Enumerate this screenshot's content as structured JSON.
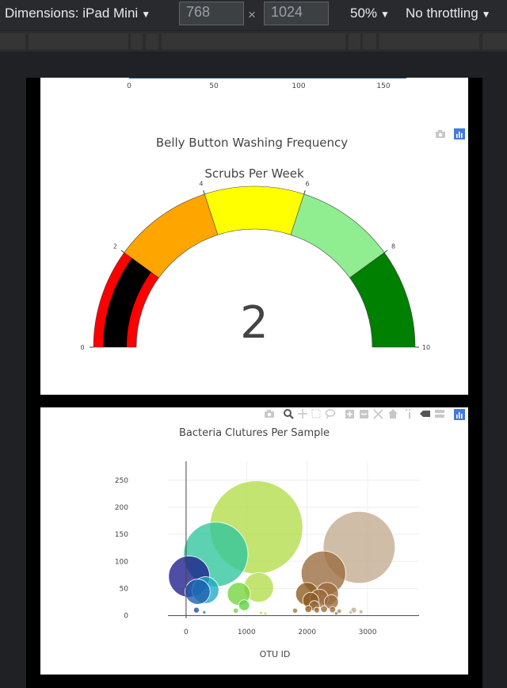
{
  "toolbar": {
    "dimensions_label": "Dimensions: iPad Mini",
    "width_value": "768",
    "times": "×",
    "height_value": "1024",
    "zoom": "50%",
    "throttling": "No throttling"
  },
  "top_axis": {
    "ticks": [
      "0",
      "50",
      "100",
      "150"
    ]
  },
  "gauge": {
    "title": "Belly Button Washing Frequency",
    "subtitle": "Scrubs Per Week",
    "value_text": "2",
    "value": 2,
    "min": 0,
    "max": 10,
    "tick_labels": [
      "0",
      "2",
      "4",
      "6",
      "8",
      "10"
    ],
    "bands": [
      {
        "from": 0,
        "to": 2,
        "color": "#ff0000"
      },
      {
        "from": 2,
        "to": 4,
        "color": "#ffa500"
      },
      {
        "from": 4,
        "to": 6,
        "color": "#ffff00"
      },
      {
        "from": 6,
        "to": 8,
        "color": "#90ee90"
      },
      {
        "from": 8,
        "to": 10,
        "color": "#008000"
      }
    ],
    "bar_color": "#000000"
  },
  "chart_data": {
    "type": "scatter",
    "title": "Bacteria Clutures Per Sample",
    "xlabel": "OTU ID",
    "ylabel": "",
    "xlim": [
      -300,
      3850
    ],
    "ylim": [
      -5,
      285
    ],
    "xticks": [
      0,
      1000,
      2000,
      3000
    ],
    "yticks": [
      0,
      50,
      100,
      150,
      200,
      250
    ],
    "points": [
      {
        "x": 1160,
        "y": 163,
        "size": 163,
        "color": "#b4dc4a"
      },
      {
        "x": 2860,
        "y": 126,
        "size": 126,
        "color": "#c3aa90"
      },
      {
        "x": 490,
        "y": 113,
        "size": 113,
        "color": "#2ec59c"
      },
      {
        "x": 2270,
        "y": 78,
        "size": 78,
        "color": "#9a6a3c"
      },
      {
        "x": 50,
        "y": 72,
        "size": 72,
        "color": "#1c1c8c"
      },
      {
        "x": 1200,
        "y": 52,
        "size": 52,
        "color": "#b4dc4a"
      },
      {
        "x": 320,
        "y": 47,
        "size": 47,
        "color": "#1fa8c8"
      },
      {
        "x": 190,
        "y": 44,
        "size": 44,
        "color": "#1c5cb0"
      },
      {
        "x": 2330,
        "y": 40,
        "size": 40,
        "color": "#9a6a3c"
      },
      {
        "x": 2000,
        "y": 40,
        "size": 40,
        "color": "#8a5a1c"
      },
      {
        "x": 870,
        "y": 40,
        "size": 40,
        "color": "#72d43c"
      },
      {
        "x": 2200,
        "y": 32,
        "size": 32,
        "color": "#9a6a3c"
      },
      {
        "x": 2060,
        "y": 28,
        "size": 28,
        "color": "#8a5a1c"
      },
      {
        "x": 2400,
        "y": 25,
        "size": 25,
        "color": "#9a6a3c"
      },
      {
        "x": 960,
        "y": 19,
        "size": 19,
        "color": "#5cd43c"
      },
      {
        "x": 2120,
        "y": 18,
        "size": 18,
        "color": "#9a6a3c"
      },
      {
        "x": 2020,
        "y": 12,
        "size": 12,
        "color": "#8a5a1c"
      },
      {
        "x": 2280,
        "y": 12,
        "size": 12,
        "color": "#9a6a3c"
      },
      {
        "x": 2420,
        "y": 11,
        "size": 11,
        "color": "#9a6a3c"
      },
      {
        "x": 2160,
        "y": 10,
        "size": 10,
        "color": "#9a6a3c"
      },
      {
        "x": 1800,
        "y": 9,
        "size": 9,
        "color": "#a07a3c"
      },
      {
        "x": 2770,
        "y": 10,
        "size": 10,
        "color": "#c3aa90"
      },
      {
        "x": 2530,
        "y": 8,
        "size": 8,
        "color": "#b28a5c"
      },
      {
        "x": 2890,
        "y": 7,
        "size": 7,
        "color": "#c3aa90"
      },
      {
        "x": 2720,
        "y": 6,
        "size": 6,
        "color": "#c3aa90"
      },
      {
        "x": 170,
        "y": 10,
        "size": 10,
        "color": "#1c4ca0"
      },
      {
        "x": 820,
        "y": 9,
        "size": 9,
        "color": "#6cd43c"
      },
      {
        "x": 300,
        "y": 6,
        "size": 6,
        "color": "#1c8cb0"
      },
      {
        "x": 1240,
        "y": 5,
        "size": 5,
        "color": "#b4dc4a"
      },
      {
        "x": 1310,
        "y": 4,
        "size": 4,
        "color": "#c4dc6a"
      },
      {
        "x": 2480,
        "y": 4,
        "size": 4,
        "color": "#9a6a3c"
      }
    ]
  },
  "icons": [
    "camera-icon",
    "plotly-logo-icon",
    "zoom-icon",
    "pan-icon",
    "box-select-icon",
    "lasso-icon",
    "zoom-in-icon",
    "zoom-out-icon",
    "autoscale-icon",
    "reset-axes-icon",
    "spike-lines-icon",
    "hover-closest-icon",
    "hover-compare-icon"
  ]
}
